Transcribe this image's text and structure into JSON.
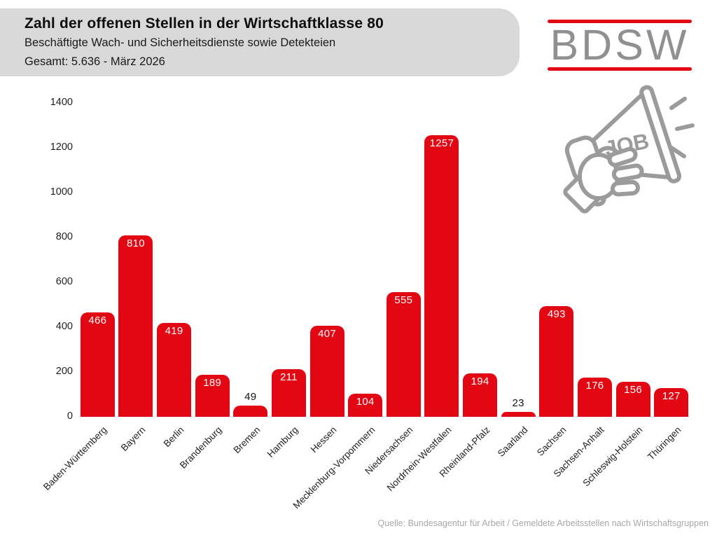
{
  "header": {
    "title": "Zahl der offenen Stellen in der Wirtschaftklasse 80",
    "subtitle": "Beschäftigte Wach- und Sicherheitsdienste sowie Detekteien",
    "total_line": "Gesamt: 5.636 - März 2026"
  },
  "logo": {
    "text": "BDSW"
  },
  "job_icon": {
    "label": "JOB"
  },
  "footer": {
    "source": "Quelle: Bundesagentur für Arbeit / Gemeldete Arbeitsstellen nach Wirtschaftsgruppen"
  },
  "colors": {
    "bar_red": "#e30613",
    "header_bg": "#d9d9d9",
    "logo_gray": "#8e9190",
    "icon_gray": "#9b9b9b",
    "footer_gray": "#a8a8a8",
    "value_label_inside": "#ffffff",
    "value_label_outside": "#141414",
    "axis_text": "#1f1f1f"
  },
  "chart_data": {
    "type": "bar",
    "title": "Zahl der offenen Stellen in der Wirtschaftklasse 80",
    "xlabel": "",
    "ylabel": "",
    "categories": [
      "Baden-Württemberg",
      "Bayern",
      "Berlin",
      "Brandenburg",
      "Bremen",
      "Hamburg",
      "Hessen",
      "Mecklenburg-Vorpommern",
      "Niedersachsen",
      "Nordrhein-Westfalen",
      "Rheinland-Pfalz",
      "Saarland",
      "Sachsen",
      "Sachsen-Anhalt",
      "Schleswig-Holstein",
      "Thüringen"
    ],
    "values": [
      466,
      810,
      419,
      189,
      49,
      211,
      407,
      104,
      555,
      1257,
      194,
      23,
      493,
      176,
      156,
      127
    ],
    "total": 5636,
    "ylim": [
      0,
      1400
    ],
    "yticks": [
      0,
      200,
      400,
      600,
      800,
      1000,
      1200,
      1400
    ],
    "grid": false,
    "legend": false,
    "bar_color": "#e30613",
    "value_labels": true,
    "outside_label_threshold": 32
  }
}
